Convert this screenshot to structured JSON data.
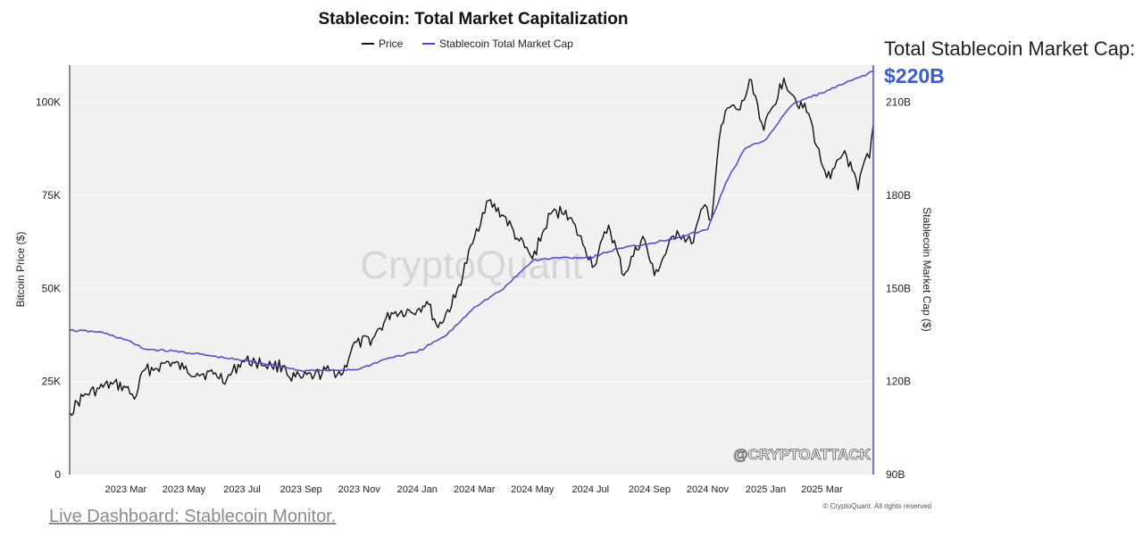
{
  "side_panel": {
    "label": "Total Stablecoin Market Cap:",
    "value": "$220B"
  },
  "footer": {
    "link_text": "Live Dashboard: Stablecoin Monitor."
  },
  "colors": {
    "price": "#111111",
    "stablecoin": "#4a47d6",
    "plot_bg": "#f1f1f1",
    "accent": "#3a5bd9"
  },
  "chart_data": {
    "type": "line",
    "title": "Stablecoin: Total Market Capitalization",
    "legend": [
      "Price",
      "Stablecoin Total Market Cap"
    ],
    "legend_position": "top-center",
    "ylabel_left": "Bitcoin Price ($)",
    "ylabel_right": "Stablecoin Market Cap ($)",
    "watermark": "CryptoQuant",
    "overlay_text": "@CRYPTOATTACK",
    "copyright": "© CryptoQuant. All rights reserved",
    "x_range": [
      "2023-01-01",
      "2025-04-24"
    ],
    "x_ticks": [
      {
        "date": "2023-03-01",
        "label": "2023 Mar"
      },
      {
        "date": "2023-05-01",
        "label": "2023 May"
      },
      {
        "date": "2023-07-01",
        "label": "2023 Jul"
      },
      {
        "date": "2023-09-01",
        "label": "2023 Sep"
      },
      {
        "date": "2023-11-01",
        "label": "2023 Nov"
      },
      {
        "date": "2024-01-01",
        "label": "2024 Jan"
      },
      {
        "date": "2024-03-01",
        "label": "2024 Mar"
      },
      {
        "date": "2024-05-01",
        "label": "2024 May"
      },
      {
        "date": "2024-07-01",
        "label": "2024 Jul"
      },
      {
        "date": "2024-09-01",
        "label": "2024 Sep"
      },
      {
        "date": "2024-11-01",
        "label": "2024 Nov"
      },
      {
        "date": "2025-01-01",
        "label": "2025 Jan"
      },
      {
        "date": "2025-03-01",
        "label": "2025 Mar"
      }
    ],
    "y_left": {
      "range": [
        0,
        110000
      ],
      "ticks": [
        {
          "value": 0,
          "label": "0"
        },
        {
          "value": 25000,
          "label": "25K"
        },
        {
          "value": 50000,
          "label": "50K"
        },
        {
          "value": 75000,
          "label": "75K"
        },
        {
          "value": 100000,
          "label": "100K"
        }
      ]
    },
    "y_right": {
      "range": [
        90,
        222
      ],
      "ticks": [
        {
          "value": 90,
          "label": "90B"
        },
        {
          "value": 120,
          "label": "120B"
        },
        {
          "value": 150,
          "label": "150B"
        },
        {
          "value": 180,
          "label": "180B"
        },
        {
          "value": 210,
          "label": "210B"
        }
      ]
    },
    "series": [
      {
        "name": "Price",
        "axis": "left",
        "points": [
          [
            "2023-01-01",
            16600
          ],
          [
            "2023-01-15",
            21000
          ],
          [
            "2023-02-01",
            23100
          ],
          [
            "2023-02-15",
            24300
          ],
          [
            "2023-03-01",
            23400
          ],
          [
            "2023-03-10",
            20300
          ],
          [
            "2023-03-20",
            28000
          ],
          [
            "2023-04-01",
            28500
          ],
          [
            "2023-04-15",
            30300
          ],
          [
            "2023-05-01",
            28400
          ],
          [
            "2023-05-15",
            27200
          ],
          [
            "2023-06-01",
            27000
          ],
          [
            "2023-06-15",
            25600
          ],
          [
            "2023-07-01",
            30500
          ],
          [
            "2023-07-15",
            30300
          ],
          [
            "2023-08-01",
            29200
          ],
          [
            "2023-08-15",
            29200
          ],
          [
            "2023-08-20",
            26100
          ],
          [
            "2023-09-01",
            25900
          ],
          [
            "2023-09-15",
            26600
          ],
          [
            "2023-10-01",
            27900
          ],
          [
            "2023-10-15",
            27200
          ],
          [
            "2023-10-25",
            34500
          ],
          [
            "2023-11-15",
            36500
          ],
          [
            "2023-12-05",
            43500
          ],
          [
            "2024-01-01",
            44200
          ],
          [
            "2024-01-11",
            46500
          ],
          [
            "2024-01-23",
            39500
          ],
          [
            "2024-02-10",
            47500
          ],
          [
            "2024-02-28",
            62000
          ],
          [
            "2024-03-14",
            73500
          ],
          [
            "2024-04-01",
            69500
          ],
          [
            "2024-04-15",
            63500
          ],
          [
            "2024-05-01",
            58000
          ],
          [
            "2024-05-20",
            70000
          ],
          [
            "2024-06-05",
            71000
          ],
          [
            "2024-06-25",
            61000
          ],
          [
            "2024-07-05",
            56000
          ],
          [
            "2024-07-20",
            67000
          ],
          [
            "2024-08-05",
            53500
          ],
          [
            "2024-08-25",
            64000
          ],
          [
            "2024-09-06",
            53500
          ],
          [
            "2024-09-30",
            65500
          ],
          [
            "2024-10-15",
            62000
          ],
          [
            "2024-10-29",
            72500
          ],
          [
            "2024-11-05",
            68500
          ],
          [
            "2024-11-13",
            90000
          ],
          [
            "2024-11-22",
            98500
          ],
          [
            "2024-12-05",
            98000
          ],
          [
            "2024-12-17",
            106000
          ],
          [
            "2024-12-30",
            92500
          ],
          [
            "2025-01-20",
            106500
          ],
          [
            "2025-02-01",
            101000
          ],
          [
            "2025-02-15",
            97000
          ],
          [
            "2025-02-28",
            84000
          ],
          [
            "2025-03-10",
            79500
          ],
          [
            "2025-03-25",
            87000
          ],
          [
            "2025-04-08",
            76500
          ],
          [
            "2025-04-15",
            84500
          ],
          [
            "2025-04-20",
            85000
          ],
          [
            "2025-04-24",
            94000
          ]
        ]
      },
      {
        "name": "Stablecoin Total Market Cap",
        "axis": "right",
        "points": [
          [
            "2023-01-01",
            136.5
          ],
          [
            "2023-02-01",
            136.0
          ],
          [
            "2023-03-01",
            133.5
          ],
          [
            "2023-03-20",
            130.5
          ],
          [
            "2023-05-01",
            129.5
          ],
          [
            "2023-06-15",
            127.5
          ],
          [
            "2023-08-01",
            125.5
          ],
          [
            "2023-09-01",
            123.5
          ],
          [
            "2023-10-01",
            123.5
          ],
          [
            "2023-11-01",
            124.0
          ],
          [
            "2023-12-01",
            127.5
          ],
          [
            "2024-01-01",
            129.5
          ],
          [
            "2024-02-01",
            135.0
          ],
          [
            "2024-03-01",
            144.0
          ],
          [
            "2024-04-01",
            150.0
          ],
          [
            "2024-05-01",
            159.0
          ],
          [
            "2024-06-01",
            160.0
          ],
          [
            "2024-07-01",
            160.0
          ],
          [
            "2024-08-01",
            163.0
          ],
          [
            "2024-09-01",
            164.5
          ],
          [
            "2024-10-01",
            166.5
          ],
          [
            "2024-11-01",
            169.0
          ],
          [
            "2024-11-20",
            184.0
          ],
          [
            "2024-12-10",
            195.0
          ],
          [
            "2025-01-01",
            198.0
          ],
          [
            "2025-01-20",
            206.0
          ],
          [
            "2025-02-01",
            210.0
          ],
          [
            "2025-03-01",
            213.0
          ],
          [
            "2025-04-01",
            217.0
          ],
          [
            "2025-04-24",
            220.0
          ]
        ]
      }
    ]
  }
}
